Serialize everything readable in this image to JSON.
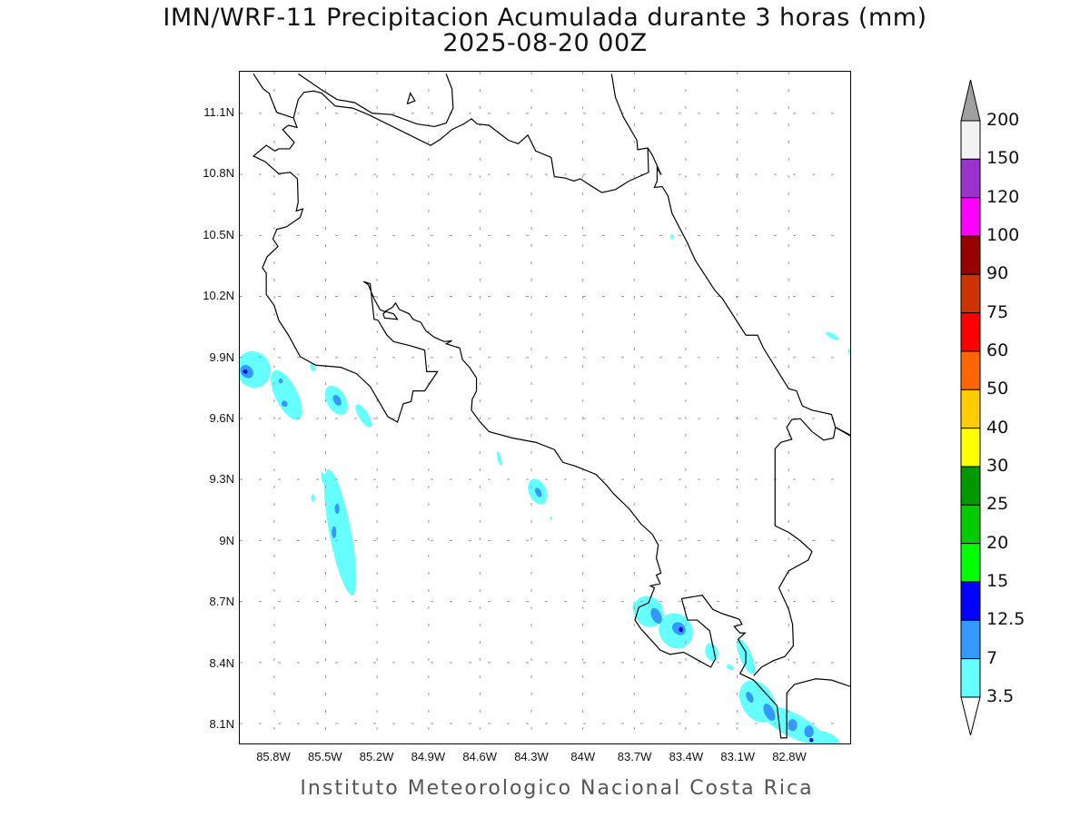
{
  "title": {
    "line1": "IMN/WRF-11 Precipitacion Acumulada durante 3 horas (mm)",
    "line2": "2025-08-20 00Z"
  },
  "footer": "Instituto Meteorologico Nacional Costa Rica",
  "map": {
    "region": "Costa Rica",
    "lat_labels": [
      "11.1N",
      "10.8N",
      "10.5N",
      "10.2N",
      "9.9N",
      "9.6N",
      "9.3N",
      "9N",
      "8.7N",
      "8.4N",
      "8.1N"
    ],
    "lon_labels": [
      "85.8W",
      "85.5W",
      "85.2W",
      "84.9W",
      "84.6W",
      "84.3W",
      "84W",
      "83.7W",
      "83.4W",
      "83.1W",
      "82.8W"
    ],
    "grid": "dotted"
  },
  "colorbar": {
    "units": "mm",
    "labels": [
      "200",
      "150",
      "120",
      "100",
      "90",
      "75",
      "60",
      "50",
      "40",
      "30",
      "25",
      "20",
      "15",
      "12.5",
      "7",
      "3.5"
    ],
    "colors": [
      "#f2f2f2",
      "#9933cc",
      "#ff00ff",
      "#990000",
      "#cc3300",
      "#ff0000",
      "#ff6600",
      "#ffcc00",
      "#ffff00",
      "#009900",
      "#00cc00",
      "#00ff00",
      "#0000ff",
      "#3399ff",
      "#66ffff"
    ],
    "over_color": "#a0a0a0",
    "under_color": "#ffffff"
  },
  "precip_colors": {
    "light": "#66ffff",
    "medium": "#3399ff",
    "heavy": "#0000ff"
  }
}
